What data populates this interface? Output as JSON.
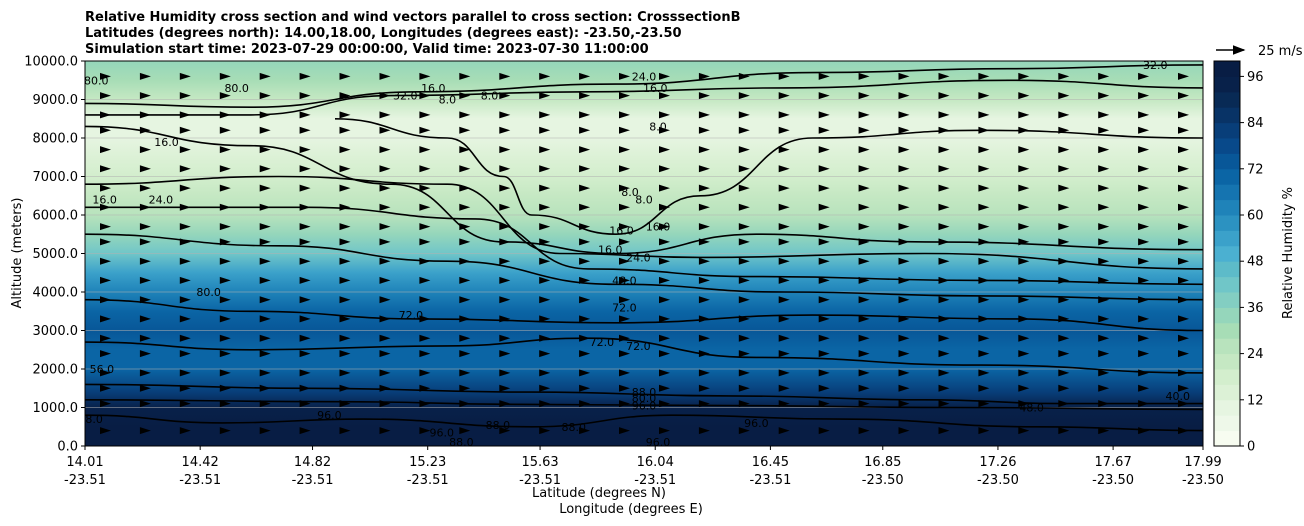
{
  "chart_data": {
    "type": "contour",
    "title_lines": [
      "Relative Humidity cross section and wind vectors parallel to cross section: CrosssectionB",
      "Latitudes (degrees north): 14.00,18.00, Longitudes (degrees east): -23.50,-23.50",
      "Simulation start time: 2023-07-29 00:00:00, Valid time: 2023-07-30 11:00:00"
    ],
    "ylabel": "Altitude (meters)",
    "xlabel_lat": "Latitude (degrees N)",
    "xlabel_lon": "Longitude (degrees E)",
    "ylim": [
      0,
      10000
    ],
    "y_ticks": [
      "0.0",
      "1000.0",
      "2000.0",
      "3000.0",
      "4000.0",
      "5000.0",
      "6000.0",
      "7000.0",
      "8000.0",
      "9000.0",
      "10000.0"
    ],
    "x_ticks": [
      {
        "lat": "14.01",
        "lon": "-23.51"
      },
      {
        "lat": "14.42",
        "lon": "-23.51"
      },
      {
        "lat": "14.82",
        "lon": "-23.51"
      },
      {
        "lat": "15.23",
        "lon": "-23.51"
      },
      {
        "lat": "15.63",
        "lon": "-23.51"
      },
      {
        "lat": "16.04",
        "lon": "-23.51"
      },
      {
        "lat": "16.45",
        "lon": "-23.51"
      },
      {
        "lat": "16.85",
        "lon": "-23.50"
      },
      {
        "lat": "17.26",
        "lon": "-23.50"
      },
      {
        "lat": "17.67",
        "lon": "-23.50"
      },
      {
        "lat": "17.99",
        "lon": "-23.50"
      }
    ],
    "lat_range": [
      14.01,
      17.99
    ],
    "colorbar": {
      "label": "Relative Humidity %",
      "min": 0,
      "max": 100,
      "step": 4,
      "ticks": [
        "0",
        "12",
        "24",
        "36",
        "48",
        "60",
        "72",
        "84",
        "96"
      ],
      "colors": [
        "#f7fcf0",
        "#eef8e9",
        "#e6f5e1",
        "#dcf1d6",
        "#d3eecd",
        "#c5e8c3",
        "#b8e3bd",
        "#a7ddb6",
        "#95d6bb",
        "#83cec2",
        "#70c6c8",
        "#5dbbc9",
        "#4bb0d1",
        "#3ba1ca",
        "#2c92c1",
        "#1f83b9",
        "#1574b0",
        "#0b65a5",
        "#085798",
        "#08498a",
        "#083e79",
        "#083366",
        "#082a55",
        "#08214a",
        "#081d44"
      ]
    },
    "wind_key": {
      "label": "25 m/s",
      "speed": 25
    },
    "wind_barb_rows_m": [
      400,
      1100,
      1500,
      1900,
      2400,
      2800,
      3300,
      3800,
      4300,
      4800,
      5300,
      5700,
      6200,
      6700,
      7200,
      7700,
      8200,
      8600,
      9100,
      9600
    ],
    "rh_profile": [
      {
        "alt": 0,
        "rh": 98
      },
      {
        "alt": 500,
        "rh": 96
      },
      {
        "alt": 1000,
        "rh": 94
      },
      {
        "alt": 1400,
        "rh": 80
      },
      {
        "alt": 2000,
        "rh": 70
      },
      {
        "alt": 2500,
        "rh": 68
      },
      {
        "alt": 3000,
        "rh": 72
      },
      {
        "alt": 3500,
        "rh": 68
      },
      {
        "alt": 4000,
        "rh": 60
      },
      {
        "alt": 4500,
        "rh": 52
      },
      {
        "alt": 5000,
        "rh": 40
      },
      {
        "alt": 5500,
        "rh": 32
      },
      {
        "alt": 6000,
        "rh": 26
      },
      {
        "alt": 6500,
        "rh": 22
      },
      {
        "alt": 7000,
        "rh": 18
      },
      {
        "alt": 7500,
        "rh": 12
      },
      {
        "alt": 8000,
        "rh": 10
      },
      {
        "alt": 8500,
        "rh": 10
      },
      {
        "alt": 9000,
        "rh": 20
      },
      {
        "alt": 9500,
        "rh": 30
      },
      {
        "alt": 10000,
        "rh": 34
      }
    ],
    "contours": [
      {
        "level": 8,
        "points": [
          [
            14.9,
            8500
          ],
          [
            15.3,
            8000
          ],
          [
            15.5,
            7000
          ],
          [
            15.6,
            6000
          ],
          [
            15.9,
            5500
          ],
          [
            16.2,
            6500
          ],
          [
            16.6,
            8000
          ],
          [
            17.2,
            8200
          ],
          [
            17.99,
            8000
          ]
        ]
      },
      {
        "level": 16,
        "points": [
          [
            14.01,
            8300
          ],
          [
            14.6,
            7800
          ],
          [
            15.1,
            6800
          ],
          [
            15.5,
            5300
          ],
          [
            15.9,
            5000
          ],
          [
            16.4,
            5500
          ],
          [
            17.0,
            5300
          ],
          [
            17.99,
            5100
          ]
        ]
      },
      {
        "level": 16,
        "points": [
          [
            14.01,
            8600
          ],
          [
            14.6,
            8600
          ],
          [
            15.1,
            9100
          ],
          [
            15.8,
            9200
          ],
          [
            16.5,
            9300
          ],
          [
            17.3,
            9500
          ],
          [
            17.99,
            9300
          ]
        ]
      },
      {
        "level": 24,
        "points": [
          [
            14.01,
            6800
          ],
          [
            14.7,
            7000
          ],
          [
            15.3,
            6800
          ],
          [
            15.7,
            5000
          ],
          [
            16.2,
            4900
          ],
          [
            17.0,
            5000
          ],
          [
            17.99,
            4600
          ]
        ]
      },
      {
        "level": 24,
        "points": [
          [
            14.01,
            8900
          ],
          [
            14.6,
            8800
          ],
          [
            15.2,
            9200
          ],
          [
            15.9,
            9400
          ],
          [
            16.6,
            9700
          ],
          [
            17.3,
            9800
          ],
          [
            17.99,
            9900
          ]
        ]
      },
      {
        "level": 32,
        "points": [
          [
            14.01,
            6200
          ],
          [
            14.8,
            6200
          ],
          [
            15.4,
            5900
          ],
          [
            15.8,
            4600
          ],
          [
            16.4,
            4400
          ],
          [
            17.2,
            4300
          ],
          [
            17.99,
            4200
          ]
        ]
      },
      {
        "level": 48,
        "points": [
          [
            14.01,
            5500
          ],
          [
            14.7,
            5200
          ],
          [
            15.3,
            4800
          ],
          [
            15.9,
            4200
          ],
          [
            16.5,
            4000
          ],
          [
            17.2,
            3900
          ],
          [
            17.99,
            3800
          ]
        ]
      },
      {
        "level": 72,
        "points": [
          [
            14.01,
            3800
          ],
          [
            14.6,
            3500
          ],
          [
            15.2,
            3300
          ],
          [
            15.9,
            3200
          ],
          [
            16.6,
            3400
          ],
          [
            17.3,
            3300
          ],
          [
            17.99,
            3000
          ]
        ]
      },
      {
        "level": 72,
        "points": [
          [
            14.01,
            2700
          ],
          [
            14.6,
            2500
          ],
          [
            15.3,
            2600
          ],
          [
            15.8,
            2800
          ],
          [
            16.4,
            2300
          ],
          [
            17.2,
            2100
          ],
          [
            17.99,
            1900
          ]
        ]
      },
      {
        "level": 80,
        "points": [
          [
            14.01,
            1600
          ],
          [
            14.8,
            1500
          ],
          [
            15.6,
            1400
          ],
          [
            16.3,
            1300
          ],
          [
            17.0,
            1200
          ],
          [
            17.5,
            1100
          ],
          [
            17.99,
            1100
          ]
        ]
      },
      {
        "level": 88,
        "points": [
          [
            14.01,
            1200
          ],
          [
            14.9,
            1150
          ],
          [
            15.6,
            1080
          ],
          [
            16.3,
            1050
          ],
          [
            17.1,
            1000
          ],
          [
            17.99,
            950
          ]
        ]
      },
      {
        "level": 96,
        "points": [
          [
            14.01,
            800
          ],
          [
            14.5,
            600
          ],
          [
            15.0,
            700
          ],
          [
            15.6,
            500
          ],
          [
            16.1,
            800
          ],
          [
            16.7,
            700
          ],
          [
            17.4,
            500
          ],
          [
            17.99,
            400
          ]
        ]
      }
    ],
    "contour_labels": [
      {
        "text": "80.0",
        "lat": 14.05,
        "alt": 9500
      },
      {
        "text": "80.0",
        "lat": 14.55,
        "alt": 9300
      },
      {
        "text": "32.0",
        "lat": 15.15,
        "alt": 9100
      },
      {
        "text": "16.0",
        "lat": 15.25,
        "alt": 9300
      },
      {
        "text": "8.0",
        "lat": 15.3,
        "alt": 9000
      },
      {
        "text": "8.0",
        "lat": 15.45,
        "alt": 9100
      },
      {
        "text": "24.0",
        "lat": 16.0,
        "alt": 9600
      },
      {
        "text": "16.0",
        "lat": 16.04,
        "alt": 9300
      },
      {
        "text": "32.0",
        "lat": 17.82,
        "alt": 9900
      },
      {
        "text": "16.0",
        "lat": 14.3,
        "alt": 7900
      },
      {
        "text": "8.0",
        "lat": 16.05,
        "alt": 8300
      },
      {
        "text": "8.0",
        "lat": 15.95,
        "alt": 6600
      },
      {
        "text": "8.0",
        "lat": 16.0,
        "alt": 6400
      },
      {
        "text": "16.0",
        "lat": 14.08,
        "alt": 6400
      },
      {
        "text": "24.0",
        "lat": 14.28,
        "alt": 6400
      },
      {
        "text": "16.0",
        "lat": 15.92,
        "alt": 5600
      },
      {
        "text": "16.0",
        "lat": 16.05,
        "alt": 5700
      },
      {
        "text": "16.0",
        "lat": 15.88,
        "alt": 5100
      },
      {
        "text": "24.0",
        "lat": 15.98,
        "alt": 4900
      },
      {
        "text": "48.0",
        "lat": 15.93,
        "alt": 4300
      },
      {
        "text": "80.0",
        "lat": 14.45,
        "alt": 4000
      },
      {
        "text": "72.0",
        "lat": 15.93,
        "alt": 3600
      },
      {
        "text": "72.0",
        "lat": 15.17,
        "alt": 3400
      },
      {
        "text": "72.0",
        "lat": 15.85,
        "alt": 2700
      },
      {
        "text": "72.0",
        "lat": 15.98,
        "alt": 2600
      },
      {
        "text": "56.0",
        "lat": 14.07,
        "alt": 2000
      },
      {
        "text": "88.0",
        "lat": 16.0,
        "alt": 1400
      },
      {
        "text": "80.0",
        "lat": 16.0,
        "alt": 1250
      },
      {
        "text": "96.0",
        "lat": 16.0,
        "alt": 1050
      },
      {
        "text": "48.0",
        "lat": 17.38,
        "alt": 1000
      },
      {
        "text": "40.0",
        "lat": 17.9,
        "alt": 1300
      },
      {
        "text": "88.0",
        "lat": 14.03,
        "alt": 700
      },
      {
        "text": "96.0",
        "lat": 14.88,
        "alt": 800
      },
      {
        "text": "88.0",
        "lat": 15.48,
        "alt": 550
      },
      {
        "text": "96.0",
        "lat": 15.28,
        "alt": 350
      },
      {
        "text": "88.0",
        "lat": 15.75,
        "alt": 500
      },
      {
        "text": "96.0",
        "lat": 16.05,
        "alt": 100
      },
      {
        "text": "96.0",
        "lat": 16.4,
        "alt": 600
      },
      {
        "text": "88.0",
        "lat": 15.35,
        "alt": 100
      }
    ]
  }
}
